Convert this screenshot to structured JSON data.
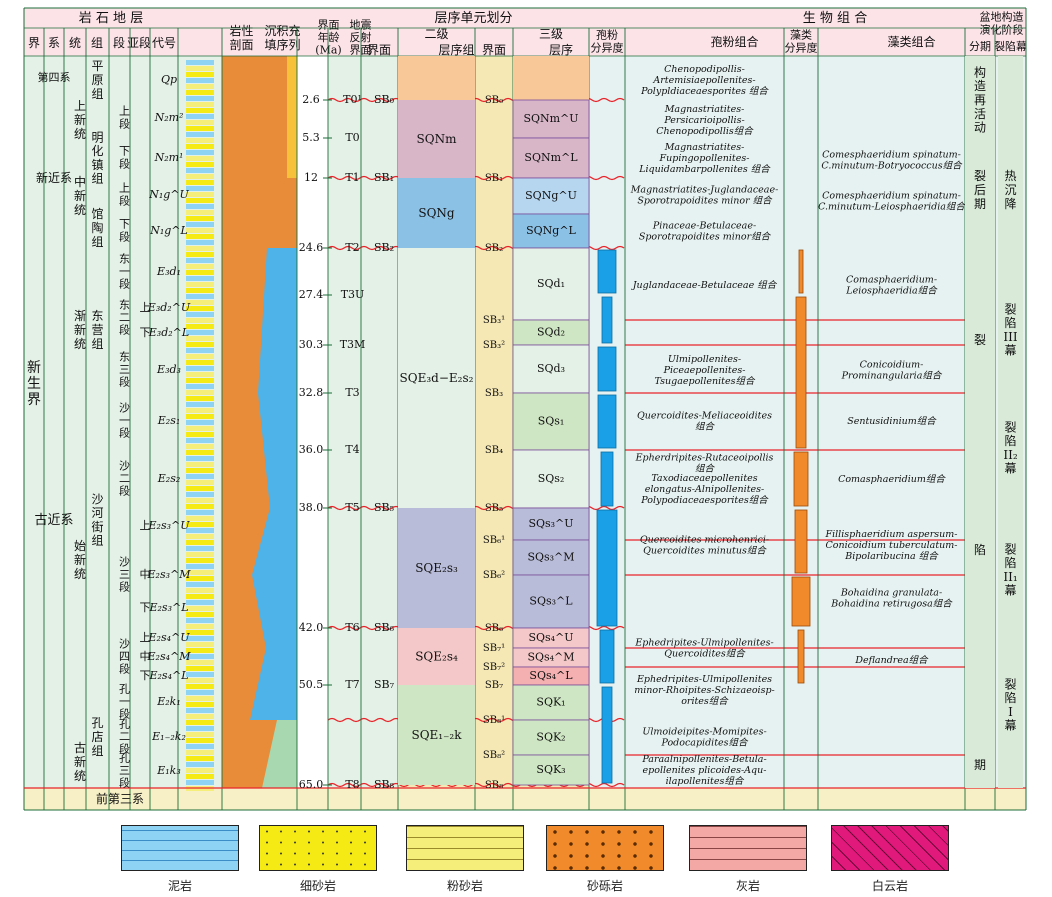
{
  "header": {
    "strat": "岩 石 地 层",
    "litho": "岩性\n剖面",
    "fill": "沉积充\n填序列",
    "age": "界面\n年龄\n(Ma)",
    "seismic": "地震\n反射\n界面",
    "sequence": "层序单元划分",
    "bio": "生 物 组 合",
    "basin": "盆地构造\n演化阶段",
    "sub_cols": [
      "界",
      "系",
      "统",
      "组",
      "段",
      "亚段",
      "代号"
    ],
    "seq_level2": "二级",
    "seq_level3": "三级",
    "seq_cols": [
      "界面",
      "层序组",
      "界面",
      "层序"
    ],
    "bio_cols": [
      "孢粉\n分异度",
      "孢粉组合",
      "藻类\n分异度",
      "藻类组合"
    ],
    "basin_cols": [
      "分期",
      "裂陷幕"
    ]
  },
  "ages": [
    "2.6",
    "5.3",
    "12",
    "24.6",
    "27.4",
    "30.3",
    "32.8",
    "36.0",
    "38.0",
    "42.0",
    "50.5",
    "65.0"
  ],
  "seismic_refl": [
    "T0¹",
    "T0",
    "T1",
    "T2",
    "T3U",
    "T3M",
    "T3",
    "T4",
    "T5",
    "T6",
    "T7",
    "T8"
  ],
  "strat": {
    "era": "新\n\n生\n\n界",
    "systems": [
      "第四系",
      "新近系",
      "古近系"
    ],
    "series": [
      "上新统",
      "中新统",
      "渐新统",
      "始新统",
      "古新统"
    ],
    "formations": [
      "平原组",
      "明化镇组",
      "馆陶组",
      "东营组",
      "沙河街组",
      "孔店组"
    ],
    "members": [
      "上段",
      "下段",
      "上段",
      "下段",
      "东一段",
      "东二段",
      "东三段",
      "沙一段",
      "沙二段",
      "沙三段",
      "沙四段",
      "孔一段",
      "孔二段",
      "孔三段"
    ],
    "submembers": [
      "上",
      "下",
      "上",
      "中",
      "下",
      "上",
      "中",
      "下"
    ],
    "codes": [
      "Qp",
      "N₂m²",
      "N₂m¹",
      "N₁g^U",
      "N₁g^L",
      "E₃d₁",
      "E₃d₂^U",
      "E₃d₂^L",
      "E₃d₃",
      "E₂s₁",
      "E₂s₂",
      "E₂s₃^U",
      "E₂s₃^M",
      "E₂s₃^L",
      "E₂s₄^U",
      "E₂s₄^M",
      "E₂s₄^L",
      "E₂k₁",
      "E₁₋₂k₂",
      "E₁k₃"
    ],
    "pre_tertiary": "前第三系"
  },
  "sequence": {
    "sb_level2": [
      "SB₀",
      "SB₁",
      "SB₂",
      "SB₅",
      "SB₆",
      "SB₇",
      "SB₈"
    ],
    "groups": [
      "SQNm",
      "SQNg",
      "SQE₃d−E₂s₂",
      "SQE₂s₃",
      "SQE₂s₄",
      "SQE₁₋₂k"
    ],
    "sb_level3": [
      "SB₀",
      "SB₁",
      "SB₂",
      "SB₃¹",
      "SB₃²",
      "SB₃",
      "SB₄",
      "SB₅",
      "SB₆¹",
      "SB₆²",
      "SB₆",
      "SB₇¹",
      "SB₇²",
      "SB₇",
      "SB₈¹",
      "SB₈²",
      "SB₈"
    ],
    "sequences": [
      "SQNm^U",
      "SQNm^L",
      "SQNg^U",
      "SQNg^L",
      "SQd₁",
      "SQd₂",
      "SQd₃",
      "SQs₁",
      "SQs₂",
      "SQs₃^U",
      "SQs₃^M",
      "SQs₃^L",
      "SQs₄^U",
      "SQs₄^M",
      "SQs₄^L",
      "SQK₁",
      "SQK₂",
      "SQK₃"
    ]
  },
  "spore": [
    "Chenopodipollis-\nArtemisiaepollenites-\nPolypldiaceaesporites 组合",
    "Magnastriatites-\nPersicarioipollis-\nChenopodipollis组合",
    "Magnastriatites-\nFupingopollenites-\nLiquidambarpollenites 组合",
    "Magnastriatites-Juglandaceae-\nSporotrapoidites minor 组合",
    "Pinaceae-Betulaceae-\nSporotrapoidites minor组合",
    "Juglandaceae-Betulaceae 组合",
    "Ulmipollenites-\nPiceaepollenites-\nTsugaepollenites组合",
    "Quercoidites-Meliaceoidites\n组合",
    "Epherdripites-Rutaceoipollis\n组合",
    "Taxodiaceaepollenites\nelongatus-Alnipollenites-\nPolypodiaceaesporites组合",
    "Quercoidites microhenrici-\nQuercoidites minutus组合",
    "Ephedripites-Ulmipollenites-\nQuercoidites组合",
    "Ephedripites-Ulmipollenites\nminor-Rhoipites-Schizaeoisp-\norites组合",
    "Ulmoideipites-Momipites-\nPodocapidites组合",
    "Paraalnipollenites-Betula-\nepollenites plicoides-Aqu-\nilapollenites组合"
  ],
  "algae": [
    "Comesphaeridium spinatum-\nC.minutum-Botryococcus组合",
    "Comesphaeridium spinatum-\nC.minutum-Leiosphaeridia组合",
    "Comasphaeridium-\nLeiosphaeridia组合",
    "Conicoidium-\nProminangularia组合",
    "Sentusidinium组合",
    "Comasphaeridium组合",
    "Fillisphaeridium aspersum-\nConicoidium tuberculatum-\nBipolaribucina 组合",
    "Bohaidina granulata-\nBohaidina retirugosa组合",
    "Deflandrea组合"
  ],
  "basin": {
    "stages": [
      "构\n造\n再\n活\n动",
      "裂\n后\n期",
      "裂",
      "陷",
      "期"
    ],
    "episodes": [
      "热\n沉\n降",
      "裂\n陷\nIII\n幕",
      "裂\n陷\nII₂\n幕",
      "裂\n陷\nII₁\n幕",
      "裂\n陷\nI\n幕"
    ]
  },
  "legend": [
    {
      "name": "泥岩",
      "color": "#8fd3f4"
    },
    {
      "name": "细砂岩",
      "color": "#f5ea14"
    },
    {
      "name": "粉砂岩",
      "color": "#f6ee7a"
    },
    {
      "name": "砂砾岩",
      "color": "#f08a2a"
    },
    {
      "name": "灰岩",
      "color": "#f4a8a6"
    },
    {
      "name": "白云岩",
      "color": "#e0197b"
    }
  ],
  "colors": {
    "header_bg": "#fbe3e8",
    "body_bg": "#e4f1e6",
    "sand": "#f5e8b5",
    "boundary": "#e8242b",
    "axis": "#1d6d3a",
    "purple": "#7a4f9a",
    "blue": "#1aa0e6",
    "orange": "#f08a2a"
  }
}
